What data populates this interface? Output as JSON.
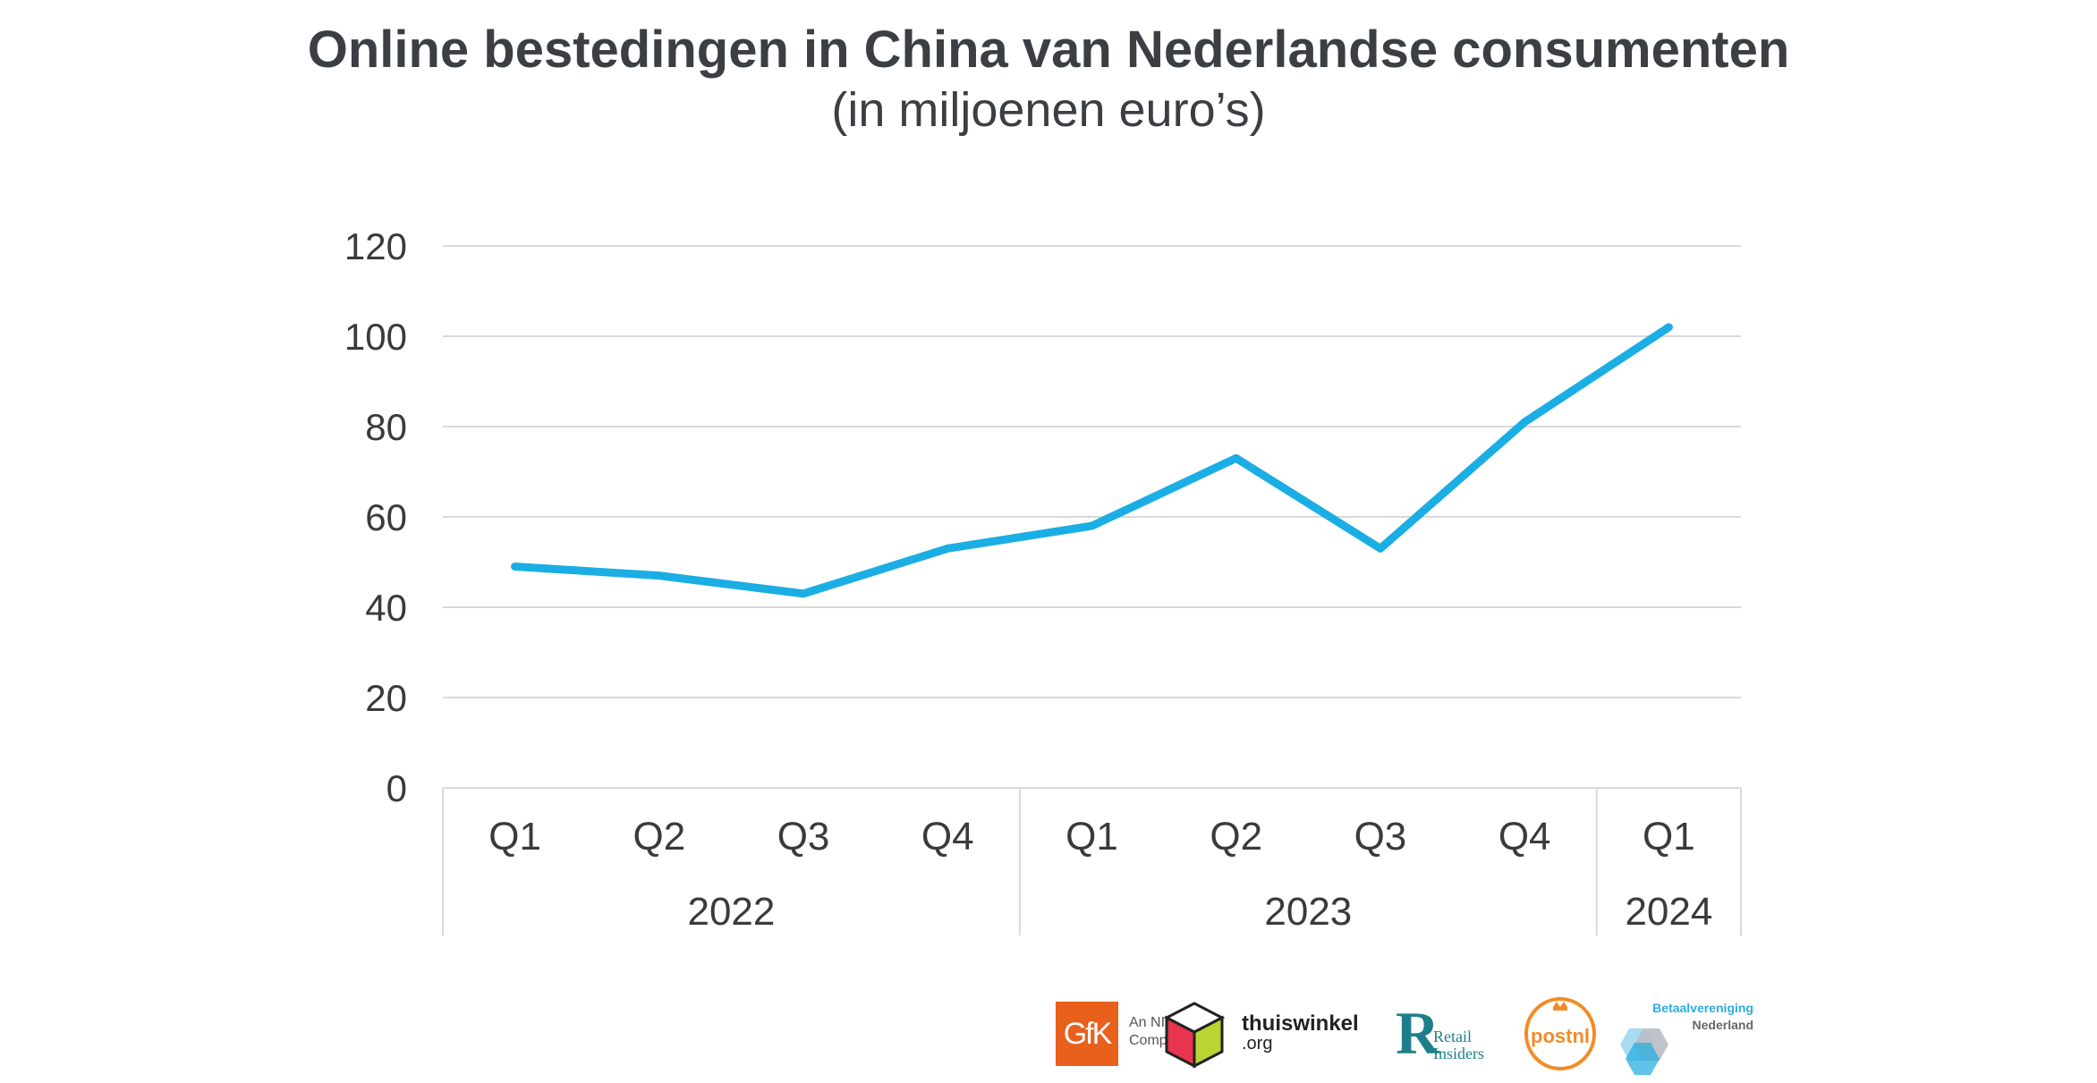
{
  "header": {
    "title": "Online bestedingen in China van Nederlandse consumenten",
    "subtitle": "(in miljoenen euro’s)"
  },
  "chart_data": {
    "type": "line",
    "title": "Online bestedingen in China van Nederlandse consumenten",
    "subtitle": "(in miljoenen euro’s)",
    "xlabel": "",
    "ylabel": "",
    "ylim": [
      0,
      120
    ],
    "yticks": [
      0,
      20,
      40,
      60,
      80,
      100,
      120
    ],
    "grid": true,
    "legend": "none",
    "color": "#1aaee4",
    "categories": [
      "Q1",
      "Q2",
      "Q3",
      "Q4",
      "Q1",
      "Q2",
      "Q3",
      "Q4",
      "Q1"
    ],
    "groups": [
      {
        "label": "2022",
        "count": 4
      },
      {
        "label": "2023",
        "count": 4
      },
      {
        "label": "2024",
        "count": 1
      }
    ],
    "series": [
      {
        "values": [
          49,
          47,
          43,
          53,
          58,
          73,
          53,
          81,
          102
        ]
      }
    ]
  },
  "logos": {
    "gfk": {
      "mark": "GfK",
      "line1": "An NIQ",
      "line2": "Company",
      "color": "#e8601c"
    },
    "thuiswinkel": {
      "name": "thuiswinkel",
      "suffix": ".org"
    },
    "retail_insiders": {
      "mark": "R",
      "line1": "Retail",
      "line2": "Insiders",
      "color": "#1e7f8b"
    },
    "postnl": {
      "name": "postnl",
      "color": "#f28c28"
    },
    "betaalvereniging": {
      "line1": "Betaalvereniging",
      "line2": "Nederland",
      "color": "#2aaee0"
    }
  }
}
